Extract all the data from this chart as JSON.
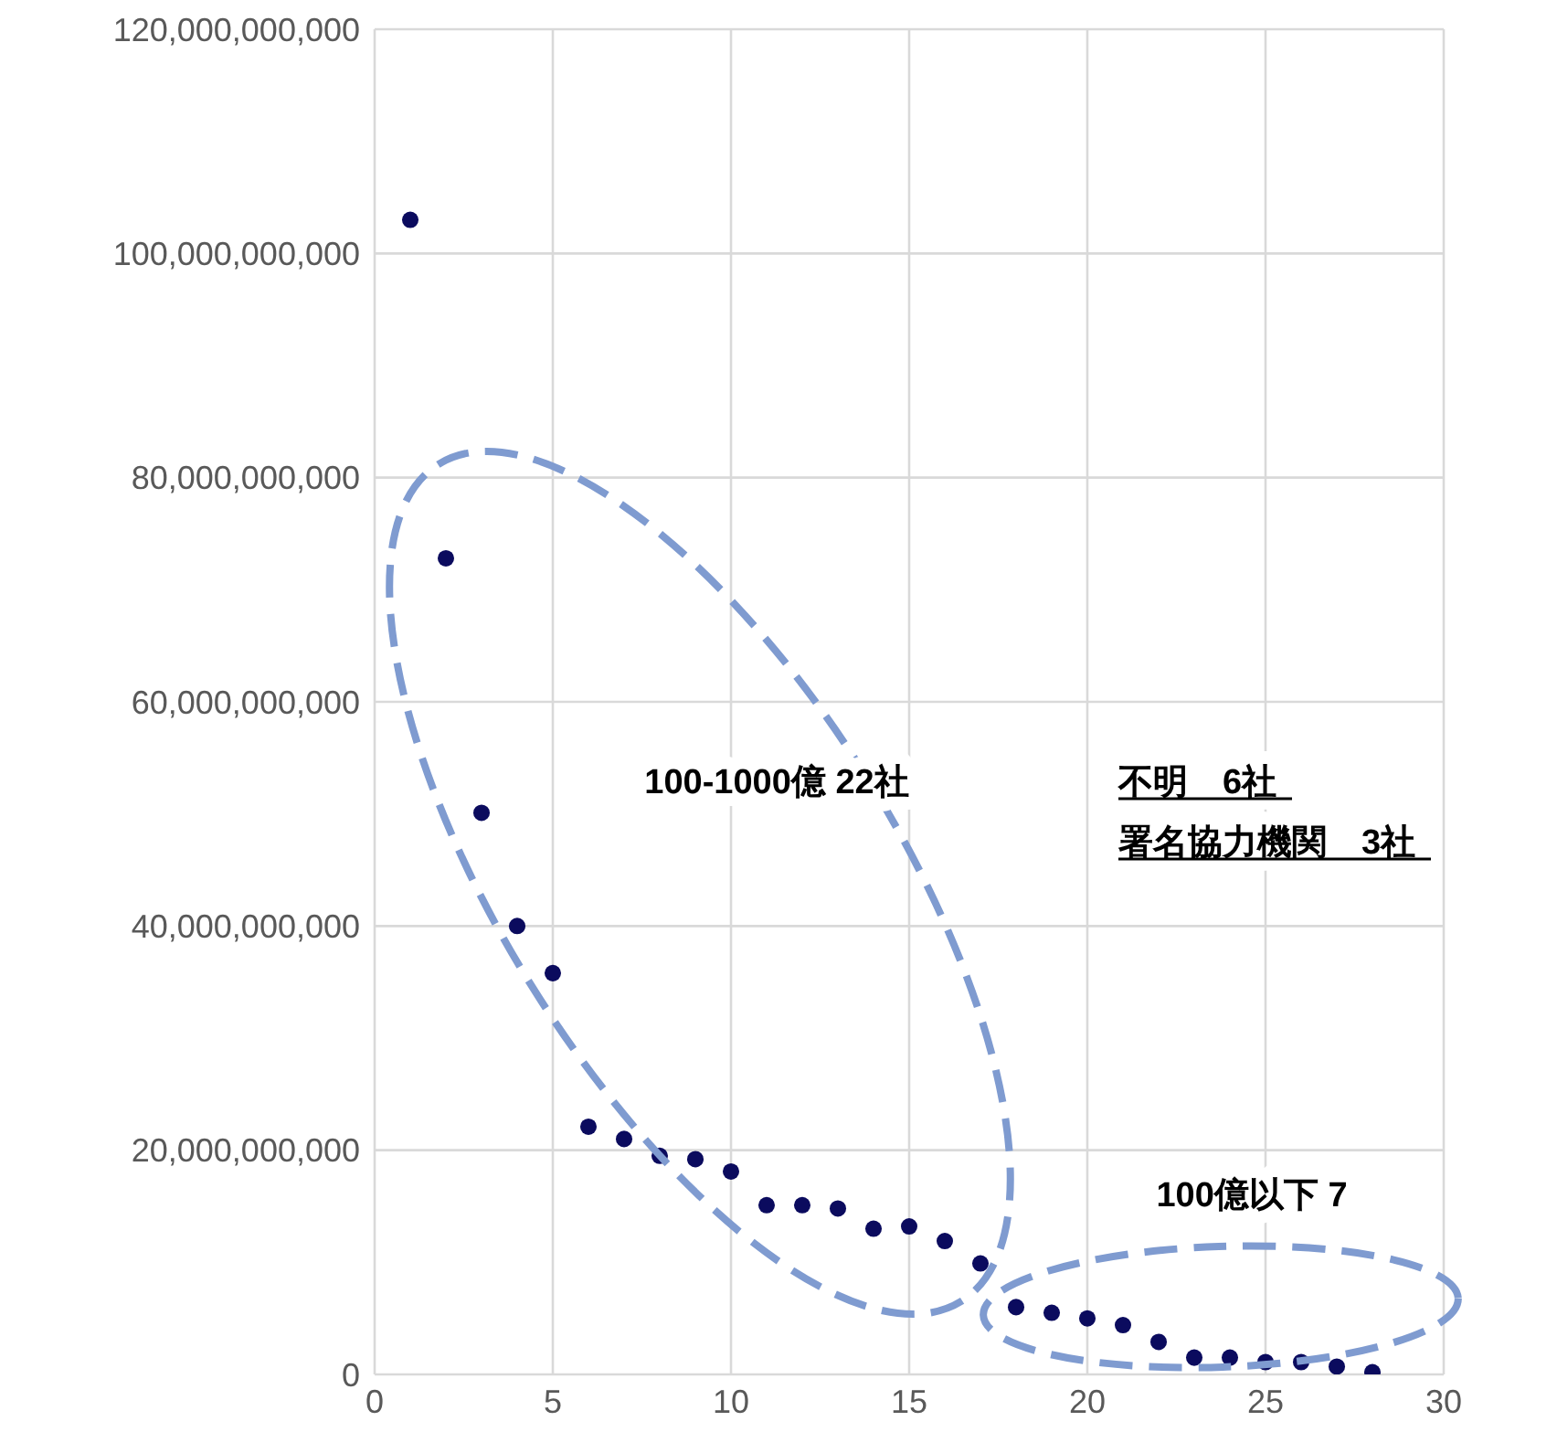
{
  "chart_data": {
    "type": "scatter",
    "x": [
      1,
      2,
      3,
      4,
      5,
      6,
      7,
      8,
      9,
      10,
      11,
      12,
      13,
      14,
      15,
      16,
      17,
      18,
      19,
      20,
      21,
      22,
      23,
      24,
      25,
      26,
      27,
      28
    ],
    "series": [
      {
        "color": "#0b0b5e",
        "values": [
          103000000000,
          72800000000,
          50100000000,
          40000000000,
          35800000000,
          22100000000,
          21000000000,
          19500000000,
          19200000000,
          18100000000,
          15100000000,
          15100000000,
          14800000000,
          13000000000,
          13200000000,
          11900000000,
          9900000000,
          6000000000,
          5500000000,
          5000000000,
          4400000000,
          2900000000,
          1500000000,
          1500000000,
          1100000000,
          1100000000,
          700000000,
          200000000
        ]
      }
    ],
    "xlim": [
      0,
      30
    ],
    "xticks": [
      0,
      5,
      10,
      15,
      20,
      25,
      30
    ],
    "ylim": [
      0,
      120000000000
    ],
    "yticks": [
      {
        "value": 0,
        "label": "0"
      },
      {
        "value": 20000000000,
        "label": "20,000,000,000"
      },
      {
        "value": 40000000000,
        "label": "40,000,000,000"
      },
      {
        "value": 60000000000,
        "label": "60,000,000,000"
      },
      {
        "value": 80000000000,
        "label": "80,000,000,000"
      },
      {
        "value": 100000000000,
        "label": "100,000,000,000"
      },
      {
        "value": 120000000000,
        "label": "120,000,000,000"
      }
    ],
    "grid": true,
    "marker": "circle",
    "annotations": [
      "100-1000億 22社",
      "不明　6社",
      "署名協力機関　3社",
      "100億以下 7"
    ]
  }
}
